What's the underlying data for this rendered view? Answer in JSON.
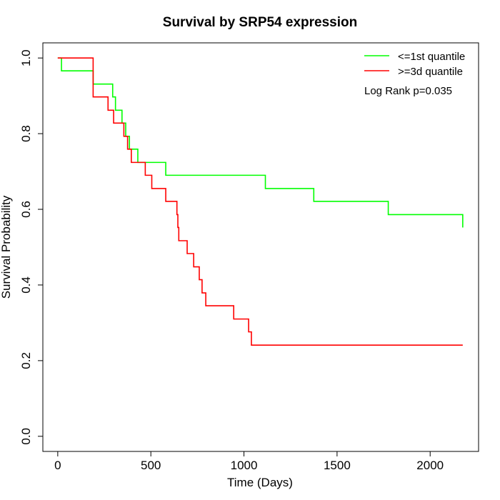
{
  "chart_data": {
    "type": "line",
    "title": "Survival by SRP54 expression",
    "xlabel": "Time (Days)",
    "ylabel": "Survival Probability",
    "xlim": [
      -80,
      2260
    ],
    "ylim": [
      -0.04,
      1.04
    ],
    "xticks": [
      0,
      500,
      1000,
      1500,
      2000
    ],
    "yticks": [
      0.0,
      0.2,
      0.4,
      0.6,
      0.8,
      1.0
    ],
    "xtick_labels": [
      "0",
      "500",
      "1000",
      "1500",
      "2000"
    ],
    "ytick_labels": [
      "0.0",
      "0.2",
      "0.4",
      "0.6",
      "0.8",
      "1.0"
    ],
    "grid": false,
    "legend_position": "top-right",
    "annotation": "Log Rank p=0.035",
    "series": [
      {
        "name": "<=1st quantile",
        "color": "#00ff00",
        "step": true,
        "x": [
          0,
          20,
          190,
          295,
          310,
          345,
          365,
          385,
          430,
          580,
          1115,
          1375,
          1775,
          2175
        ],
        "y": [
          1.0,
          0.966,
          0.931,
          0.897,
          0.862,
          0.828,
          0.793,
          0.759,
          0.724,
          0.69,
          0.655,
          0.621,
          0.586,
          0.552
        ]
      },
      {
        "name": ">=3d quantile",
        "color": "#ff0000",
        "step": true,
        "x": [
          0,
          190,
          270,
          300,
          355,
          375,
          395,
          470,
          505,
          580,
          640,
          645,
          650,
          695,
          730,
          760,
          775,
          795,
          945,
          1025,
          1040,
          1415,
          2175
        ],
        "y": [
          1.0,
          0.897,
          0.862,
          0.828,
          0.793,
          0.759,
          0.724,
          0.69,
          0.655,
          0.621,
          0.586,
          0.552,
          0.517,
          0.483,
          0.448,
          0.414,
          0.379,
          0.345,
          0.31,
          0.276,
          0.241,
          0.241,
          0.241
        ]
      }
    ]
  }
}
